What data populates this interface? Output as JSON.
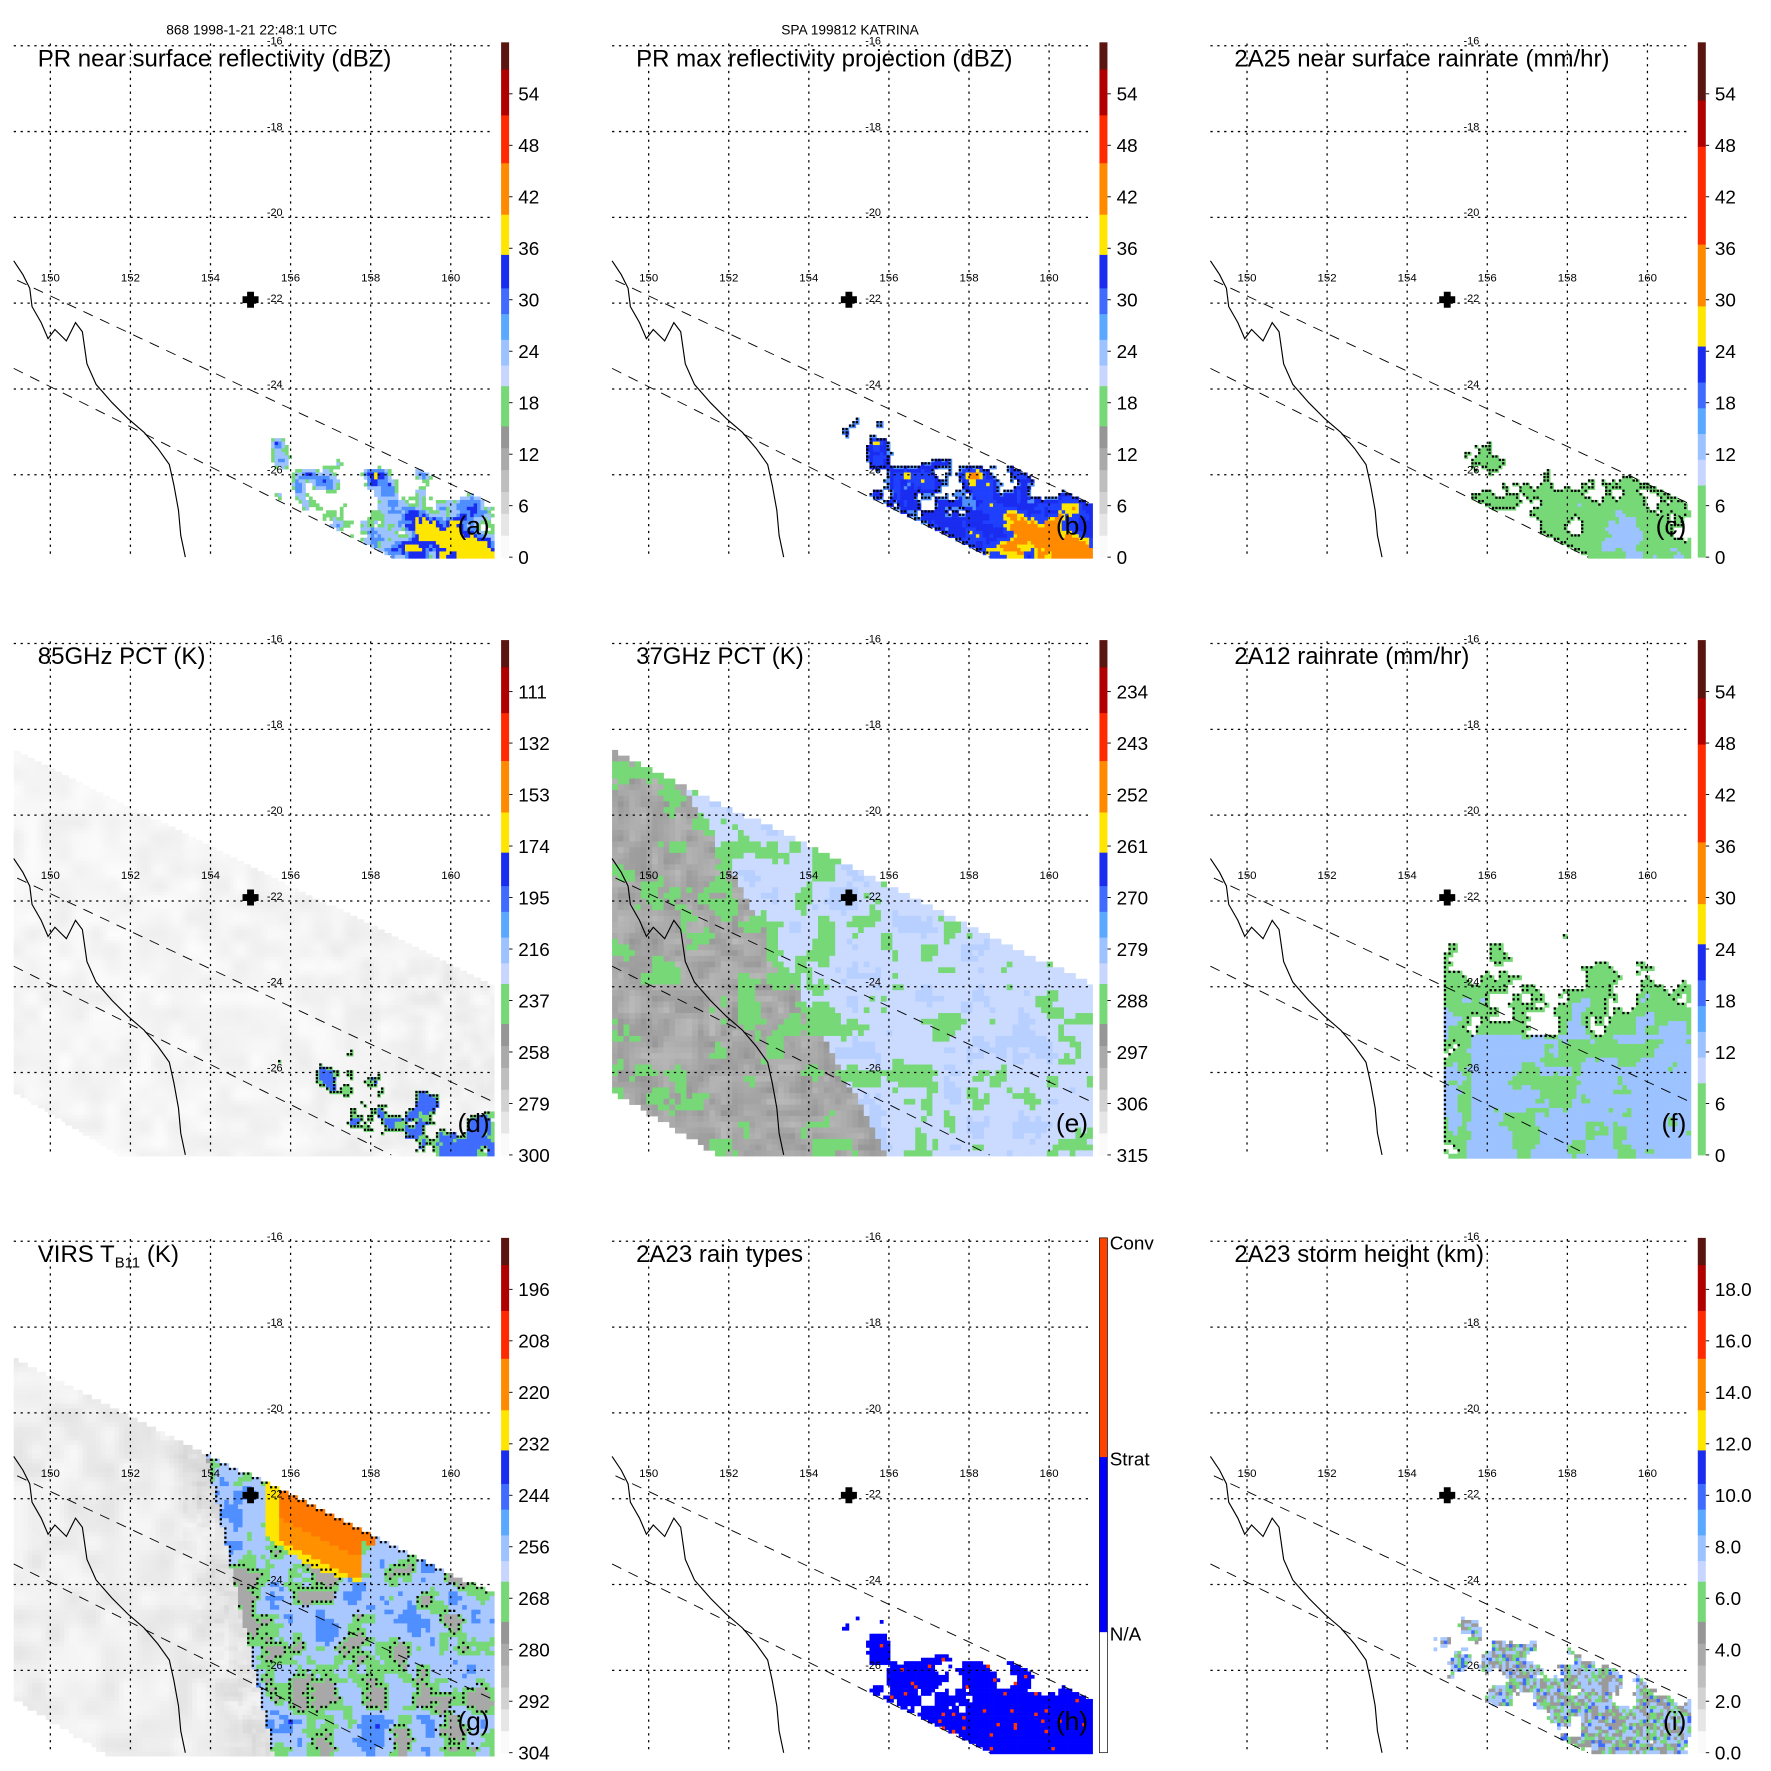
{
  "header": {
    "left": "868 1998-1-21 22:48:1 UTC",
    "center": "SPA 199812 KATRINA"
  },
  "map": {
    "lon_labels": [
      "150",
      "152",
      "154",
      "156",
      "158",
      "160"
    ],
    "lat_labels": [
      "-16",
      "-18",
      "-20",
      "-22",
      "-24",
      "-26"
    ],
    "storm_marker_icon": "cross-icon"
  },
  "panels": [
    {
      "id": "a",
      "title": "PR near surface reflectivity (dBZ)",
      "letter": "(a)",
      "colorbar": [
        "54",
        "48",
        "42",
        "36",
        "30",
        "24",
        "18",
        "12",
        "6",
        "0"
      ]
    },
    {
      "id": "b",
      "title": "PR max reflectivity projection (dBZ)",
      "letter": "(b)",
      "colorbar": [
        "54",
        "48",
        "42",
        "36",
        "30",
        "24",
        "18",
        "12",
        "6",
        "0"
      ]
    },
    {
      "id": "c",
      "title": "2A25 near surface rainrate (mm/hr)",
      "letter": "(c)",
      "colorbar": [
        "54",
        "48",
        "42",
        "36",
        "30",
        "24",
        "18",
        "12",
        "6",
        "0"
      ]
    },
    {
      "id": "d",
      "title": "85GHz PCT (K)",
      "letter": "(d)",
      "colorbar": [
        "111",
        "132",
        "153",
        "174",
        "195",
        "216",
        "237",
        "258",
        "279",
        "300"
      ]
    },
    {
      "id": "e",
      "title": "37GHz PCT (K)",
      "letter": "(e)",
      "colorbar": [
        "234",
        "243",
        "252",
        "261",
        "270",
        "279",
        "288",
        "297",
        "306",
        "315"
      ]
    },
    {
      "id": "f",
      "title": "2A12 rainrate (mm/hr)",
      "letter": "(f)",
      "colorbar": [
        "54",
        "48",
        "42",
        "36",
        "30",
        "24",
        "18",
        "12",
        "6",
        "0"
      ]
    },
    {
      "id": "g",
      "title": "VIRS T",
      "title_sub": "B11",
      "title_suffix": "(K)",
      "letter": "(g)",
      "colorbar": [
        "196",
        "208",
        "220",
        "232",
        "244",
        "256",
        "268",
        "280",
        "292",
        "304"
      ]
    },
    {
      "id": "h",
      "title": "2A23 rain types",
      "letter": "(h)",
      "colorbar": [
        "Conv",
        "Strat",
        "N/A"
      ]
    },
    {
      "id": "i",
      "title": "2A23 storm height (km)",
      "letter": "(i)",
      "colorbar": [
        "18.0",
        "16.0",
        "14.0",
        "12.0",
        "10.0",
        "8.0",
        "6.0",
        "4.0",
        "2.0",
        "0.0"
      ]
    }
  ],
  "colors": {
    "green": "#77d877",
    "light_blue": "#a9c8ff",
    "mid_blue": "#4f8fff",
    "blue": "#1a2cf0",
    "yellow": "#ffe600",
    "orange": "#ff8a00",
    "red": "#ff2a00",
    "dark_red": "#b00000",
    "brown": "#5a1510"
  }
}
